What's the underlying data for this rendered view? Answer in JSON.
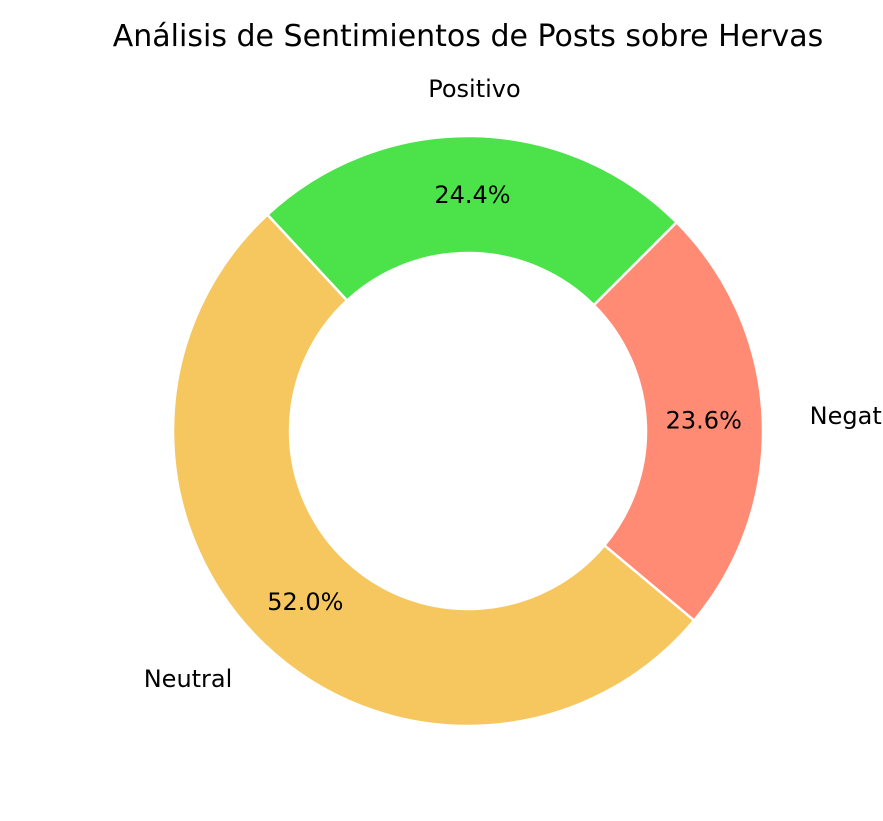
{
  "chart_data": {
    "type": "pie",
    "style": "donut",
    "title": "Análisis de Sentimientos de Posts sobre Hervas",
    "categories": [
      "Positivo",
      "Neutral",
      "Negativo"
    ],
    "values": [
      24.4,
      52.0,
      23.6
    ],
    "value_labels": [
      "24.4%",
      "52.0%",
      "23.6%"
    ],
    "colors": [
      "#4ce24a",
      "#f6c75f",
      "#ff8b74"
    ],
    "edge_color": "#ffffff",
    "legend": "none"
  }
}
